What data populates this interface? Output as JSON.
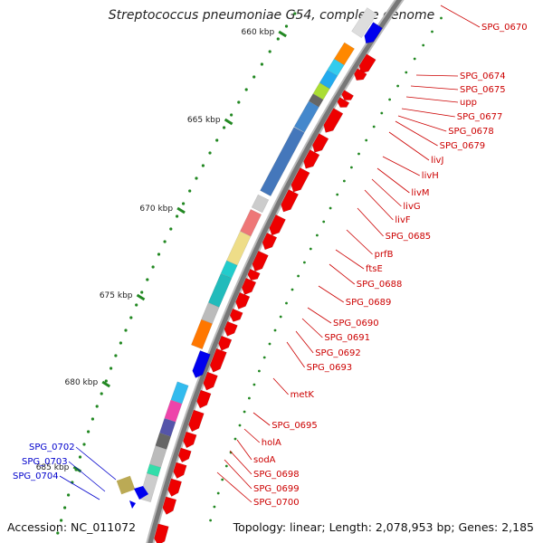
{
  "title": "Streptococcus pneumoniae G54, complete genome",
  "accession": "Accession: NC_011072",
  "topology": "Topology: linear; Length: 2,078,953 bp; Genes: 2,185",
  "ticks": [
    "660 kbp",
    "665 kbp",
    "670 kbp",
    "675 kbp",
    "680 kbp",
    "685 kbp"
  ],
  "genes_right": [
    "SPG_0670",
    "SPG_0674",
    "SPG_0675",
    "upp",
    "SPG_0677",
    "SPG_0678",
    "SPG_0679",
    "livJ",
    "livH",
    "livM",
    "livG",
    "livF",
    "SPG_0685",
    "prfB",
    "ftsE",
    "SPG_0688",
    "SPG_0689",
    "SPG_0690",
    "SPG_0691",
    "SPG_0692",
    "SPG_0693",
    "metK",
    "SPG_0695",
    "holA",
    "sodA",
    "SPG_0698",
    "SPG_0699",
    "SPG_0700"
  ],
  "genes_left": [
    "SPG_0702",
    "SPG_0703",
    "SPG_0704"
  ],
  "colors": {
    "forward_gene": "#ee0000",
    "label_right": "#cc0000",
    "label_left": "#0000cc",
    "tick": "#228822",
    "axis": "#888888"
  }
}
